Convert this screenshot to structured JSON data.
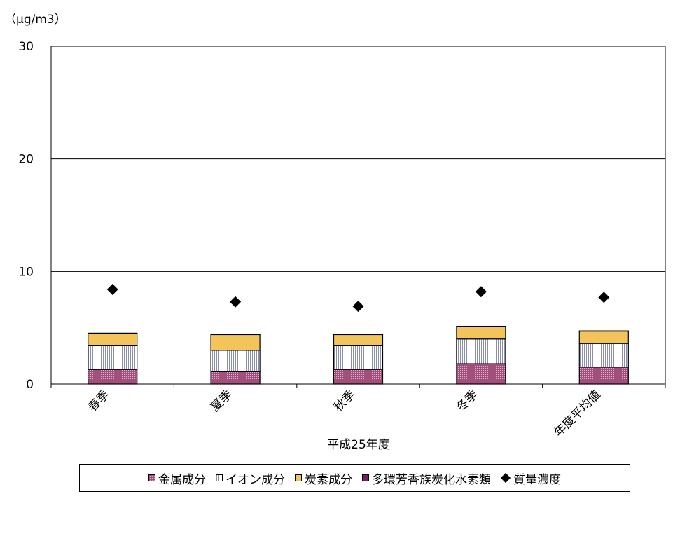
{
  "chart_data": {
    "type": "bar",
    "stacked": true,
    "title": "",
    "unit_label": "（μg/m3）",
    "xlabel": "平成25年度",
    "ylabel": "",
    "ylim": [
      0,
      30
    ],
    "yticks": [
      "0",
      "10",
      "20",
      "30"
    ],
    "grid": true,
    "legend_position": "bottom",
    "categories": [
      "春季",
      "夏季",
      "秋季",
      "冬季",
      "年度平均値"
    ],
    "series": [
      {
        "name": "金属成分",
        "type": "bar",
        "color": "#a0507a",
        "values": [
          1.3,
          1.1,
          1.3,
          1.8,
          1.5
        ]
      },
      {
        "name": "イオン成分",
        "type": "bar",
        "color": "#ffffff",
        "values": [
          2.1,
          1.9,
          2.1,
          2.2,
          2.1
        ]
      },
      {
        "name": "炭素成分",
        "type": "bar",
        "color": "#f2c45a",
        "values": [
          1.1,
          1.4,
          1.0,
          1.1,
          1.1
        ]
      },
      {
        "name": "多環芳香族炭化水素類",
        "type": "bar",
        "color": "#7a1f5e",
        "values": [
          0.02,
          0.02,
          0.02,
          0.03,
          0.02
        ]
      },
      {
        "name": "質量濃度",
        "type": "scatter",
        "color": "#000000",
        "marker": "diamond",
        "values": [
          8.4,
          7.3,
          6.9,
          8.2,
          7.7
        ]
      }
    ]
  }
}
